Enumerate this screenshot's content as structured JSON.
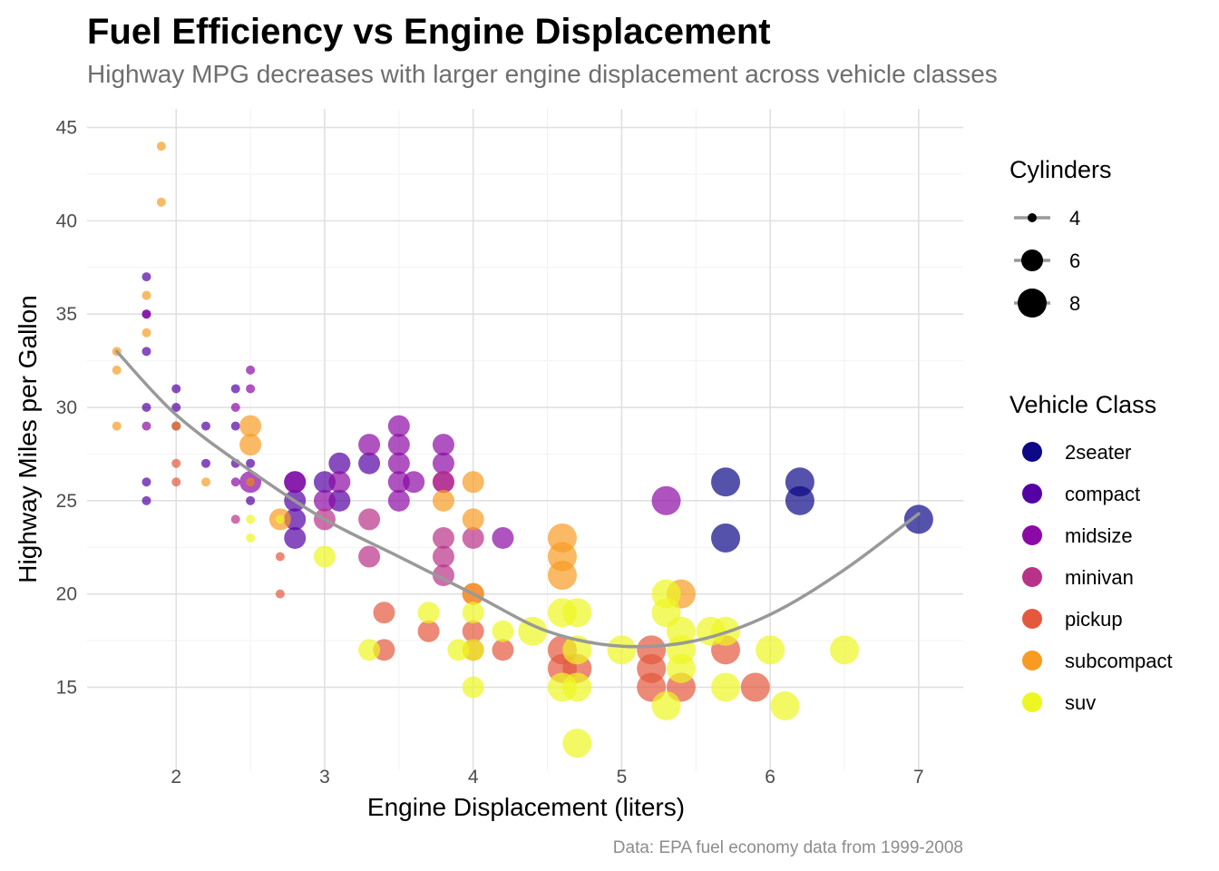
{
  "chart_data": {
    "type": "scatter",
    "title": "Fuel Efficiency vs Engine Displacement",
    "subtitle": "Highway MPG decreases with larger engine displacement across vehicle classes",
    "xlabel": "Engine Displacement (liters)",
    "ylabel": "Highway Miles per Gallon",
    "caption": "Data: EPA fuel economy data from 1999-2008",
    "xlim": [
      1.4,
      7.3
    ],
    "ylim": [
      10.5,
      46
    ],
    "x_ticks": [
      2,
      3,
      4,
      5,
      6,
      7
    ],
    "y_ticks": [
      15,
      20,
      25,
      30,
      35,
      40,
      45
    ],
    "grid": true,
    "size_legend": {
      "title": "Cylinders",
      "entries": [
        {
          "label": "4",
          "cyl": 4
        },
        {
          "label": "6",
          "cyl": 6
        },
        {
          "label": "8",
          "cyl": 8
        }
      ]
    },
    "color_legend": {
      "title": "Vehicle Class",
      "entries": [
        {
          "label": "2seater",
          "color": "#0d0887"
        },
        {
          "label": "compact",
          "color": "#5402a3"
        },
        {
          "label": "midsize",
          "color": "#8b0aa5"
        },
        {
          "label": "minivan",
          "color": "#b93289"
        },
        {
          "label": "pickup",
          "color": "#e4593d"
        },
        {
          "label": "subcompact",
          "color": "#f89b22"
        },
        {
          "label": "suv",
          "color": "#eef621"
        }
      ]
    },
    "trend": {
      "type": "loess",
      "color": "#999999",
      "points": [
        [
          1.6,
          33.0
        ],
        [
          2.0,
          29.6
        ],
        [
          2.5,
          26.6
        ],
        [
          3.0,
          24.0
        ],
        [
          3.5,
          22.0
        ],
        [
          4.0,
          20.0
        ],
        [
          4.5,
          18.0
        ],
        [
          5.0,
          17.2
        ],
        [
          5.5,
          17.5
        ],
        [
          6.0,
          18.9
        ],
        [
          6.5,
          21.3
        ],
        [
          7.0,
          24.3
        ]
      ]
    },
    "series": [
      {
        "name": "2seater",
        "points": [
          {
            "x": 5.7,
            "y": 26,
            "cyl": 8
          },
          {
            "x": 5.7,
            "y": 23,
            "cyl": 8
          },
          {
            "x": 6.2,
            "y": 26,
            "cyl": 8
          },
          {
            "x": 6.2,
            "y": 25,
            "cyl": 8
          },
          {
            "x": 7.0,
            "y": 24,
            "cyl": 8
          }
        ]
      },
      {
        "name": "compact",
        "points": [
          {
            "x": 1.8,
            "y": 37,
            "cyl": 4
          },
          {
            "x": 1.8,
            "y": 35,
            "cyl": 4
          },
          {
            "x": 1.8,
            "y": 33,
            "cyl": 4
          },
          {
            "x": 1.8,
            "y": 30,
            "cyl": 4
          },
          {
            "x": 1.8,
            "y": 26,
            "cyl": 4
          },
          {
            "x": 1.8,
            "y": 25,
            "cyl": 4
          },
          {
            "x": 2.0,
            "y": 31,
            "cyl": 4
          },
          {
            "x": 2.0,
            "y": 30,
            "cyl": 4
          },
          {
            "x": 2.0,
            "y": 29,
            "cyl": 4
          },
          {
            "x": 2.2,
            "y": 29,
            "cyl": 4
          },
          {
            "x": 2.2,
            "y": 27,
            "cyl": 4
          },
          {
            "x": 2.4,
            "y": 31,
            "cyl": 4
          },
          {
            "x": 2.4,
            "y": 27,
            "cyl": 4
          },
          {
            "x": 2.4,
            "y": 29,
            "cyl": 4
          },
          {
            "x": 2.5,
            "y": 27,
            "cyl": 4
          },
          {
            "x": 2.5,
            "y": 25,
            "cyl": 4
          },
          {
            "x": 2.5,
            "y": 26,
            "cyl": 4
          },
          {
            "x": 2.8,
            "y": 26,
            "cyl": 6
          },
          {
            "x": 2.8,
            "y": 25,
            "cyl": 6
          },
          {
            "x": 2.8,
            "y": 24,
            "cyl": 6
          },
          {
            "x": 2.8,
            "y": 23,
            "cyl": 6
          },
          {
            "x": 3.0,
            "y": 26,
            "cyl": 6
          },
          {
            "x": 3.1,
            "y": 27,
            "cyl": 6
          },
          {
            "x": 3.1,
            "y": 25,
            "cyl": 6
          },
          {
            "x": 3.3,
            "y": 27,
            "cyl": 6
          }
        ]
      },
      {
        "name": "midsize",
        "points": [
          {
            "x": 1.8,
            "y": 35,
            "cyl": 4
          },
          {
            "x": 1.8,
            "y": 29,
            "cyl": 4
          },
          {
            "x": 2.0,
            "y": 29,
            "cyl": 4
          },
          {
            "x": 2.4,
            "y": 30,
            "cyl": 4
          },
          {
            "x": 2.5,
            "y": 32,
            "cyl": 4
          },
          {
            "x": 2.5,
            "y": 31,
            "cyl": 4
          },
          {
            "x": 2.4,
            "y": 26,
            "cyl": 4
          },
          {
            "x": 2.5,
            "y": 26,
            "cyl": 6
          },
          {
            "x": 2.8,
            "y": 26,
            "cyl": 6
          },
          {
            "x": 3.0,
            "y": 25,
            "cyl": 6
          },
          {
            "x": 3.1,
            "y": 26,
            "cyl": 6
          },
          {
            "x": 3.3,
            "y": 28,
            "cyl": 6
          },
          {
            "x": 3.5,
            "y": 29,
            "cyl": 6
          },
          {
            "x": 3.5,
            "y": 28,
            "cyl": 6
          },
          {
            "x": 3.5,
            "y": 27,
            "cyl": 6
          },
          {
            "x": 3.5,
            "y": 26,
            "cyl": 6
          },
          {
            "x": 3.5,
            "y": 25,
            "cyl": 6
          },
          {
            "x": 3.6,
            "y": 26,
            "cyl": 6
          },
          {
            "x": 3.8,
            "y": 28,
            "cyl": 6
          },
          {
            "x": 3.8,
            "y": 27,
            "cyl": 6
          },
          {
            "x": 3.8,
            "y": 26,
            "cyl": 6
          },
          {
            "x": 4.2,
            "y": 23,
            "cyl": 6
          },
          {
            "x": 5.3,
            "y": 25,
            "cyl": 8
          }
        ]
      },
      {
        "name": "minivan",
        "points": [
          {
            "x": 2.4,
            "y": 24,
            "cyl": 4
          },
          {
            "x": 3.0,
            "y": 24,
            "cyl": 6
          },
          {
            "x": 3.3,
            "y": 24,
            "cyl": 6
          },
          {
            "x": 3.3,
            "y": 22,
            "cyl": 6
          },
          {
            "x": 3.8,
            "y": 23,
            "cyl": 6
          },
          {
            "x": 3.8,
            "y": 22,
            "cyl": 6
          },
          {
            "x": 3.8,
            "y": 21,
            "cyl": 6
          },
          {
            "x": 3.8,
            "y": 26,
            "cyl": 6
          },
          {
            "x": 4.0,
            "y": 23,
            "cyl": 6
          }
        ]
      },
      {
        "name": "pickup",
        "points": [
          {
            "x": 2.7,
            "y": 22,
            "cyl": 4
          },
          {
            "x": 2.7,
            "y": 20,
            "cyl": 4
          },
          {
            "x": 2.0,
            "y": 26,
            "cyl": 4
          },
          {
            "x": 2.0,
            "y": 27,
            "cyl": 4
          },
          {
            "x": 3.4,
            "y": 19,
            "cyl": 6
          },
          {
            "x": 3.4,
            "y": 17,
            "cyl": 6
          },
          {
            "x": 3.7,
            "y": 18,
            "cyl": 6
          },
          {
            "x": 4.0,
            "y": 18,
            "cyl": 6
          },
          {
            "x": 4.0,
            "y": 17,
            "cyl": 6
          },
          {
            "x": 4.0,
            "y": 20,
            "cyl": 6
          },
          {
            "x": 4.2,
            "y": 17,
            "cyl": 6
          },
          {
            "x": 4.6,
            "y": 17,
            "cyl": 8
          },
          {
            "x": 4.6,
            "y": 16,
            "cyl": 8
          },
          {
            "x": 4.7,
            "y": 16,
            "cyl": 8
          },
          {
            "x": 5.2,
            "y": 17,
            "cyl": 8
          },
          {
            "x": 5.2,
            "y": 16,
            "cyl": 8
          },
          {
            "x": 5.2,
            "y": 15,
            "cyl": 8
          },
          {
            "x": 5.4,
            "y": 15,
            "cyl": 8
          },
          {
            "x": 5.7,
            "y": 17,
            "cyl": 8
          },
          {
            "x": 5.9,
            "y": 15,
            "cyl": 8
          }
        ]
      },
      {
        "name": "subcompact",
        "points": [
          {
            "x": 1.6,
            "y": 33,
            "cyl": 4
          },
          {
            "x": 1.6,
            "y": 32,
            "cyl": 4
          },
          {
            "x": 1.6,
            "y": 29,
            "cyl": 4
          },
          {
            "x": 1.8,
            "y": 36,
            "cyl": 4
          },
          {
            "x": 1.8,
            "y": 34,
            "cyl": 4
          },
          {
            "x": 1.9,
            "y": 44,
            "cyl": 4
          },
          {
            "x": 1.9,
            "y": 41,
            "cyl": 4
          },
          {
            "x": 2.0,
            "y": 29,
            "cyl": 4
          },
          {
            "x": 2.2,
            "y": 26,
            "cyl": 4
          },
          {
            "x": 2.5,
            "y": 29,
            "cyl": 6
          },
          {
            "x": 2.5,
            "y": 28,
            "cyl": 6
          },
          {
            "x": 2.5,
            "y": 26,
            "cyl": 4
          },
          {
            "x": 2.7,
            "y": 24,
            "cyl": 6
          },
          {
            "x": 3.8,
            "y": 25,
            "cyl": 6
          },
          {
            "x": 4.0,
            "y": 26,
            "cyl": 6
          },
          {
            "x": 4.0,
            "y": 24,
            "cyl": 6
          },
          {
            "x": 4.0,
            "y": 20,
            "cyl": 6
          },
          {
            "x": 4.6,
            "y": 23,
            "cyl": 8
          },
          {
            "x": 4.6,
            "y": 22,
            "cyl": 8
          },
          {
            "x": 4.6,
            "y": 21,
            "cyl": 8
          },
          {
            "x": 5.4,
            "y": 20,
            "cyl": 8
          }
        ]
      },
      {
        "name": "suv",
        "points": [
          {
            "x": 2.5,
            "y": 24,
            "cyl": 4
          },
          {
            "x": 2.5,
            "y": 23,
            "cyl": 4
          },
          {
            "x": 2.7,
            "y": 24,
            "cyl": 4
          },
          {
            "x": 3.0,
            "y": 22,
            "cyl": 6
          },
          {
            "x": 3.3,
            "y": 17,
            "cyl": 6
          },
          {
            "x": 3.7,
            "y": 19,
            "cyl": 6
          },
          {
            "x": 3.9,
            "y": 17,
            "cyl": 6
          },
          {
            "x": 4.0,
            "y": 19,
            "cyl": 6
          },
          {
            "x": 4.0,
            "y": 17,
            "cyl": 6
          },
          {
            "x": 4.0,
            "y": 15,
            "cyl": 6
          },
          {
            "x": 4.2,
            "y": 18,
            "cyl": 6
          },
          {
            "x": 4.4,
            "y": 18,
            "cyl": 8
          },
          {
            "x": 4.6,
            "y": 19,
            "cyl": 8
          },
          {
            "x": 4.6,
            "y": 15,
            "cyl": 8
          },
          {
            "x": 4.7,
            "y": 19,
            "cyl": 8
          },
          {
            "x": 4.7,
            "y": 17,
            "cyl": 8
          },
          {
            "x": 4.7,
            "y": 15,
            "cyl": 8
          },
          {
            "x": 4.7,
            "y": 12,
            "cyl": 8
          },
          {
            "x": 5.0,
            "y": 17,
            "cyl": 8
          },
          {
            "x": 5.3,
            "y": 20,
            "cyl": 8
          },
          {
            "x": 5.3,
            "y": 19,
            "cyl": 8
          },
          {
            "x": 5.3,
            "y": 14,
            "cyl": 8
          },
          {
            "x": 5.4,
            "y": 18,
            "cyl": 8
          },
          {
            "x": 5.4,
            "y": 17,
            "cyl": 8
          },
          {
            "x": 5.4,
            "y": 16,
            "cyl": 8
          },
          {
            "x": 5.6,
            "y": 18,
            "cyl": 8
          },
          {
            "x": 5.7,
            "y": 18,
            "cyl": 8
          },
          {
            "x": 5.7,
            "y": 15,
            "cyl": 8
          },
          {
            "x": 6.0,
            "y": 17,
            "cyl": 8
          },
          {
            "x": 6.1,
            "y": 14,
            "cyl": 8
          },
          {
            "x": 6.5,
            "y": 17,
            "cyl": 8
          }
        ]
      }
    ]
  }
}
